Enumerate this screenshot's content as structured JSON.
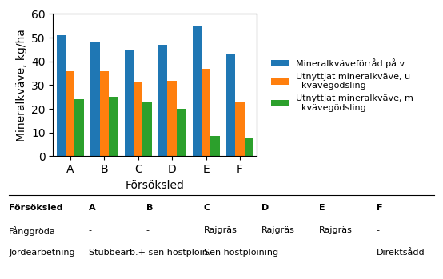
{
  "chart_data": {
    "type": "bar",
    "categories": [
      "A",
      "B",
      "C",
      "D",
      "E",
      "F"
    ],
    "series": [
      {
        "name": "Mineralkväveförråd på v",
        "values": [
          51,
          48.5,
          44.5,
          47,
          55,
          43
        ]
      },
      {
        "name": "Utnyttjat mineralkväve, u\n  kvävegödsling",
        "values": [
          36,
          36,
          31,
          32,
          37,
          23
        ]
      },
      {
        "name": "Utnyttjat mineralkväve, m\n  kvävegödsling",
        "values": [
          24,
          25,
          23,
          20,
          8.5,
          7.5
        ]
      }
    ],
    "xlabel": "Försöksled",
    "ylabel": "Mineralkväve, kg/ha",
    "ylim": [
      0,
      60
    ],
    "yticks": [
      0,
      10,
      20,
      30,
      40,
      50,
      60
    ],
    "legend": "center left",
    "table": {
      "header": [
        "Försöksled",
        "A",
        "B",
        "C",
        "D",
        "E",
        "F"
      ],
      "rows": [
        {
          "label": "Fånggröda",
          "cells": [
            "-",
            "-",
            "Rajgräs",
            "Rajgräs",
            "Rajgräs",
            "-"
          ]
        },
        {
          "label": "Jordearbetning",
          "cells": [
            "Stubbearb.+ sen höstplöin.",
            null,
            "Sen höstplöining",
            null,
            null,
            "Direktsådd"
          ]
        }
      ]
    }
  }
}
